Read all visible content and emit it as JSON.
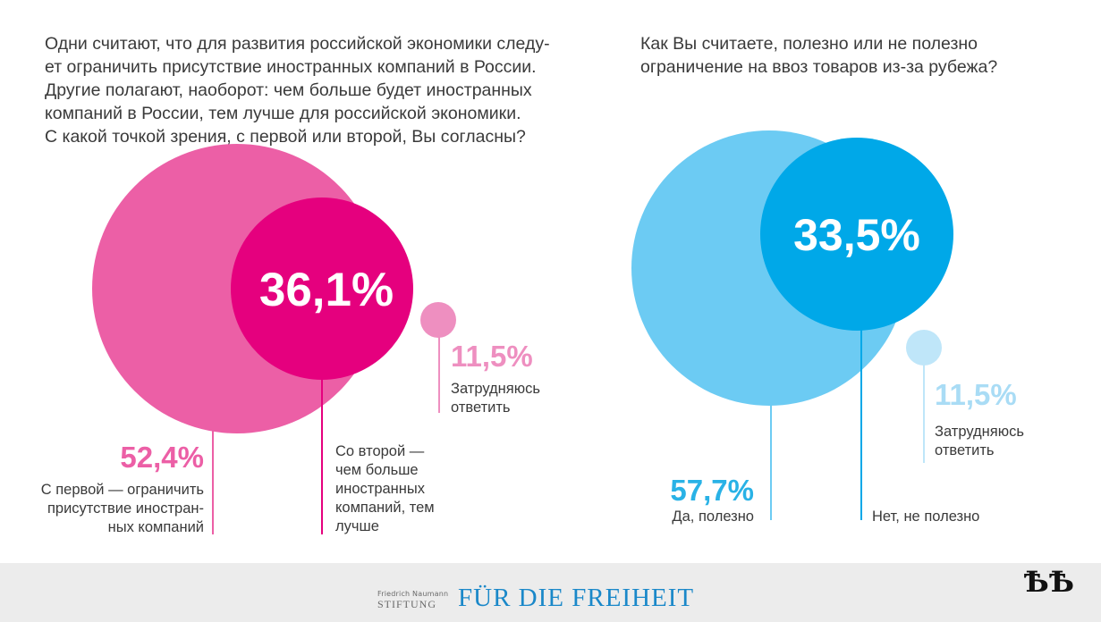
{
  "questions": {
    "left": "Одни считают, что для развития российской экономики следу-\nет ограничить присутствие иностранных компаний в России.\nДругие полагают, наоборот: чем больше будет иностранных\nкомпаний в России, тем лучше для российской экономики.\nС какой точкой зрения, с первой или второй, Вы согласны?",
    "right": "Как Вы считаете, полезно или не полезно\nограничение на ввоз товаров из-за рубежа?"
  },
  "chart_data": [
    {
      "type": "bubble",
      "title": "",
      "colors": {
        "first": "#ec5fa6",
        "second": "#e5007e",
        "third": "#ee8fc0"
      },
      "series": [
        {
          "label": "С первой — ограничить\nприсутствие иностран-\nных компаний",
          "value": 52.4,
          "value_label": "52,4%"
        },
        {
          "label": "Со второй —\nчем больше\nиностранных\nкомпаний, тем\nлучше",
          "value": 36.1,
          "value_label": "36,1%"
        },
        {
          "label": "Затрудняюсь\nответить",
          "value": 11.5,
          "value_label": "11,5%"
        }
      ]
    },
    {
      "type": "bubble",
      "title": "",
      "colors": {
        "first": "#6ccbf3",
        "second": "#00a8e8",
        "third": "#bfe6f9"
      },
      "series": [
        {
          "label": "Да, полезно",
          "value": 57.7,
          "value_label": "57,7%"
        },
        {
          "label": "Нет, не полезно",
          "value": 33.5,
          "value_label": "33,5%"
        },
        {
          "label": "Затрудняюсь\nответить",
          "value": 11.5,
          "value_label": "11,5%"
        }
      ]
    }
  ],
  "footer": {
    "org_small": "Friedrich Naumann",
    "org_big": "STIFTUNG",
    "brand": "FÜR DIE FREIHEIT",
    "corner_logo": "ѢѢ"
  }
}
